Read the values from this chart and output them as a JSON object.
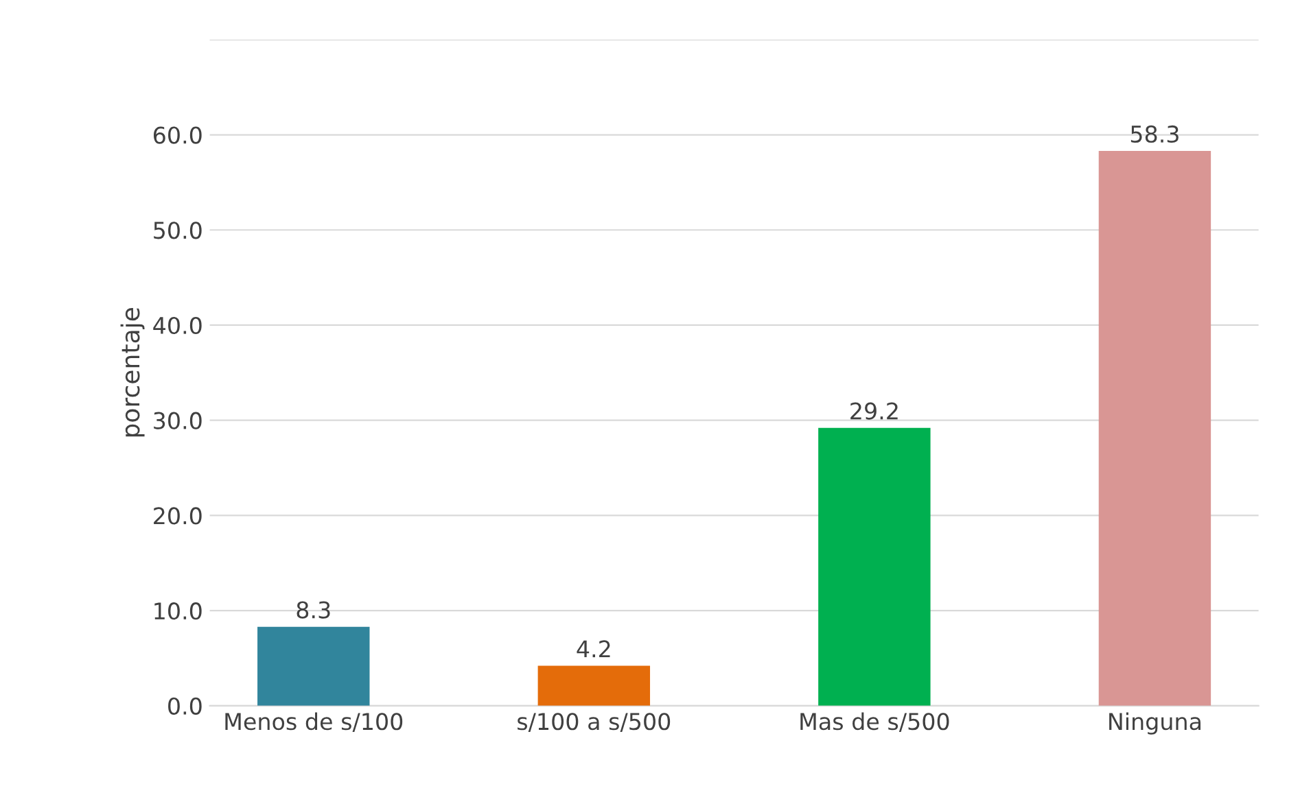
{
  "chart_data": {
    "type": "bar",
    "ylabel": "porcentaje",
    "categories": [
      "Menos de s/100",
      "s/100 a s/500",
      "Mas de s/500",
      "Ninguna"
    ],
    "values": [
      8.3,
      4.2,
      29.2,
      58.3
    ],
    "colors": [
      "#31859c",
      "#e46c0a",
      "#00b050",
      "#d99694"
    ],
    "ylim": [
      0,
      70
    ],
    "yticks": [
      {
        "value": 0,
        "label": "0.0"
      },
      {
        "value": 10,
        "label": "10.0"
      },
      {
        "value": 20,
        "label": "20.0"
      },
      {
        "value": 30,
        "label": "30.0"
      },
      {
        "value": 40,
        "label": "40.0"
      },
      {
        "value": 50,
        "label": "50.0"
      },
      {
        "value": 60,
        "label": "60.0"
      },
      {
        "value": 70,
        "label": null
      }
    ],
    "grid": "y",
    "data_labels": true
  }
}
